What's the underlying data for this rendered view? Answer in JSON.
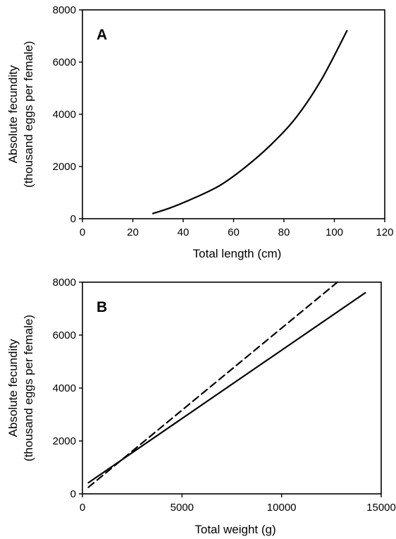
{
  "chart_data": [
    {
      "type": "line",
      "panel_label": "A",
      "xlabel": "Total length (cm)",
      "ylabel": [
        "Absolute fecundity",
        "(thousand eggs per female)"
      ],
      "xlim": [
        0,
        120
      ],
      "ylim": [
        0,
        8000
      ],
      "x_ticks": [
        0,
        20,
        40,
        60,
        80,
        100,
        120
      ],
      "y_ticks": [
        0,
        2000,
        4000,
        6000,
        8000
      ],
      "grid": false,
      "series": [
        {
          "style": "solid",
          "x": [
            28,
            35,
            45,
            55,
            65,
            75,
            85,
            95,
            105
          ],
          "y": [
            200,
            420,
            820,
            1300,
            2000,
            2850,
            3900,
            5350,
            7200
          ]
        }
      ]
    },
    {
      "type": "line",
      "panel_label": "B",
      "xlabel": "Total weight (g)",
      "ylabel": [
        "Absolute fecundity",
        "(thousand eggs per female)"
      ],
      "xlim": [
        0,
        15000
      ],
      "ylim": [
        0,
        8000
      ],
      "x_ticks": [
        0,
        5000,
        10000,
        15000
      ],
      "y_ticks": [
        0,
        2000,
        4000,
        6000,
        8000
      ],
      "grid": false,
      "series": [
        {
          "style": "solid",
          "x": [
            300,
            14200
          ],
          "y": [
            420,
            7600
          ]
        },
        {
          "style": "dashed",
          "x": [
            300,
            12800
          ],
          "y": [
            250,
            8000
          ]
        }
      ]
    }
  ]
}
